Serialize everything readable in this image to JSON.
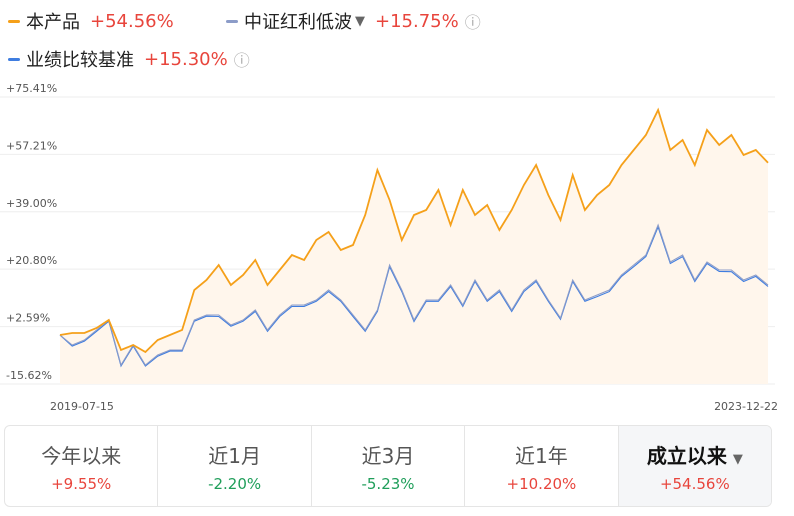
{
  "chart_data": {
    "type": "line",
    "series": [
      {
        "name": "本产品",
        "total_label": "+54.56%",
        "color": "#f5a01a",
        "fill": "#fff6ec",
        "values": [
          -0.08,
          0.55,
          0.55,
          2.14,
          4.67,
          -4.84,
          -3.26,
          -5.48,
          -1.67,
          -0.08,
          1.5,
          14.19,
          17.36,
          22.12,
          15.78,
          18.95,
          23.71,
          15.78,
          20.53,
          25.29,
          23.71,
          30.05,
          32.59,
          26.88,
          28.46,
          37.98,
          52.25,
          42.74,
          30.05,
          37.98,
          39.57,
          45.91,
          34.81,
          45.91,
          37.98,
          41.15,
          33.22,
          39.57,
          47.5,
          53.84,
          44.32,
          36.39,
          50.67,
          39.57,
          44.32,
          47.5,
          53.84,
          58.6,
          63.36,
          71.29,
          58.6,
          61.77,
          53.84,
          64.94,
          60.18,
          63.36,
          57.01,
          58.6,
          54.56
        ]
      },
      {
        "name": "中证红利低波",
        "total_label": "+15.75%",
        "color": "#8c9cc8",
        "values": [
          -0.08,
          -3.26,
          -1.67,
          1.5,
          4.67,
          -9.6,
          -3.26,
          -9.6,
          -6.43,
          -4.84,
          -4.84,
          4.67,
          6.26,
          6.26,
          3.09,
          4.67,
          7.85,
          1.5,
          6.26,
          9.43,
          9.43,
          11.02,
          14.19,
          11.02,
          6.26,
          1.5,
          7.85,
          22.12,
          14.19,
          4.67,
          11.02,
          11.02,
          15.78,
          9.43,
          17.36,
          11.02,
          14.19,
          7.85,
          14.19,
          17.36,
          11.02,
          5.31,
          17.36,
          11.02,
          12.6,
          14.19,
          18.95,
          22.12,
          25.29,
          34.81,
          23.07,
          25.29,
          17.36,
          23.07,
          20.53,
          20.53,
          17.36,
          18.95,
          15.75
        ]
      },
      {
        "name": "业绩比较基准",
        "total_label": "+15.30%",
        "color": "#3f7de0",
        "values": [
          -0.1,
          -3.6,
          -2.0,
          1.1,
          4.3,
          -9.9,
          -3.6,
          -9.9,
          -6.8,
          -5.2,
          -5.2,
          4.3,
          5.9,
          5.8,
          2.7,
          4.3,
          7.4,
          1.1,
          5.8,
          9.0,
          9.0,
          10.6,
          13.7,
          10.6,
          5.8,
          1.1,
          7.4,
          21.6,
          13.7,
          4.2,
          10.6,
          10.6,
          15.3,
          9.0,
          16.9,
          10.6,
          13.7,
          7.4,
          13.7,
          16.9,
          10.6,
          4.9,
          16.9,
          10.6,
          12.1,
          13.7,
          18.5,
          21.6,
          24.8,
          34.2,
          22.6,
          24.8,
          16.9,
          22.6,
          20.1,
          20.0,
          16.9,
          18.5,
          15.3
        ]
      }
    ],
    "categories": [
      "2019-07-15",
      null,
      null,
      null,
      null,
      null,
      null,
      null,
      null,
      null,
      null,
      null,
      null,
      null,
      null,
      null,
      null,
      null,
      null,
      null,
      null,
      null,
      null,
      null,
      null,
      null,
      null,
      null,
      null,
      null,
      null,
      null,
      null,
      null,
      null,
      null,
      null,
      null,
      null,
      null,
      null,
      null,
      null,
      null,
      null,
      null,
      null,
      null,
      null,
      null,
      null,
      null,
      null,
      null,
      null,
      null,
      null,
      null,
      "2023-12-22"
    ],
    "ylim": [
      -15.62,
      75.41
    ],
    "yticks": [
      {
        "value": 75.41,
        "label": "+75.41%"
      },
      {
        "value": 57.21,
        "label": "+57.21%"
      },
      {
        "value": 39.0,
        "label": "+39.00%"
      },
      {
        "value": 20.8,
        "label": "+20.80%"
      },
      {
        "value": 2.59,
        "label": "+2.59%"
      },
      {
        "value": -15.62,
        "label": "-15.62%"
      }
    ],
    "grid": true
  },
  "period_tabs": [
    {
      "label": "今年以来",
      "return": "+9.55%",
      "color": "#e8453c"
    },
    {
      "label": "近1月",
      "return": "-2.20%",
      "color": "#1f9e5a"
    },
    {
      "label": "近3月",
      "return": "-5.23%",
      "color": "#1f9e5a"
    },
    {
      "label": "近1年",
      "return": "+10.20%",
      "color": "#e8453c"
    },
    {
      "label": "成立以来",
      "return": "+54.56%",
      "color": "#e8453c",
      "selected": true
    }
  ]
}
